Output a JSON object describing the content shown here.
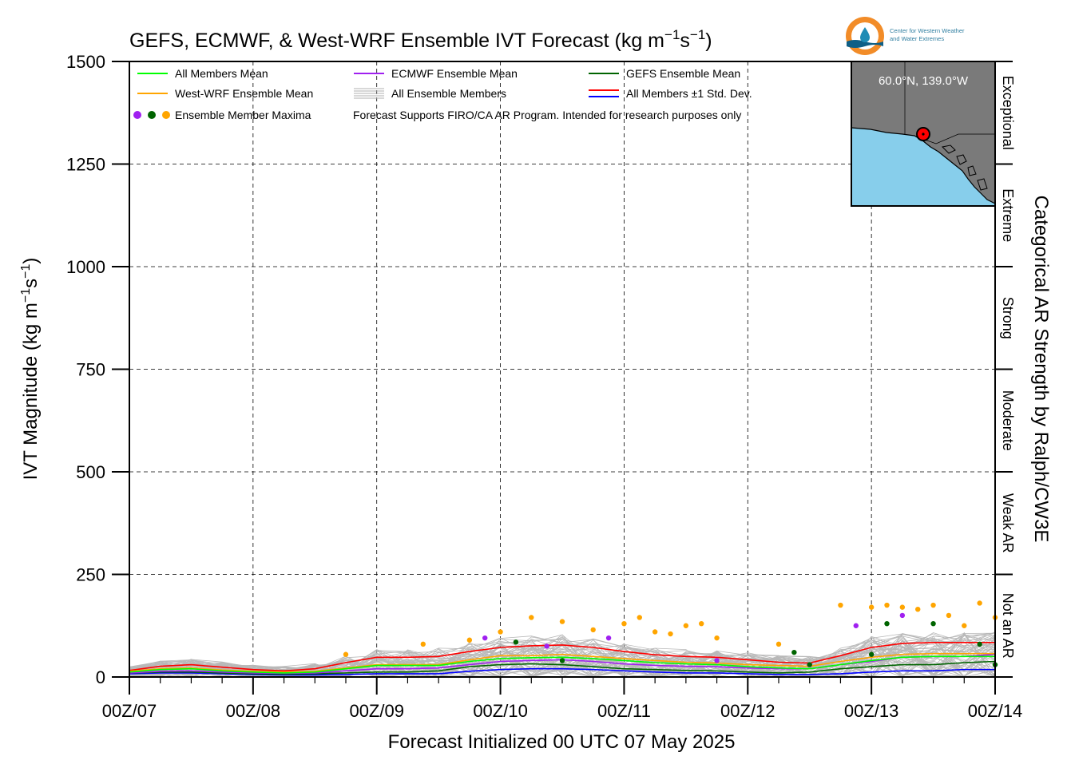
{
  "title_main": "GEFS, ECMWF, & West-WRF Ensemble IVT Forecast (kg m",
  "title_unit_exp1": "−1",
  "title_unit_mid": "s",
  "title_unit_exp2": "−1",
  "title_unit_end": ")",
  "logo": {
    "line1": "Center for Western Weather",
    "line2": "and Water Extremes",
    "colors": [
      "#f28c28",
      "#1f8cb5",
      "#0f5f86"
    ]
  },
  "inset_map": {
    "location_label": "60.0°N, 139.0°W",
    "land_color": "#7a7a7a",
    "ocean_color": "#87ceeb",
    "marker_color": "#ff0000"
  },
  "legend": {
    "all_mean": "All Members Mean",
    "ecmwf_mean": "ECMWF Ensemble Mean",
    "gefs_mean": "GEFS Ensemble Mean",
    "wwrf_mean": "West-WRF Ensemble Mean",
    "all_members": "All Ensemble Members",
    "std_dev": "All Members ±1 Std. Dev.",
    "maxima": "Ensemble Member Maxima",
    "note": "Forecast Supports FIRO/CA AR Program. Intended for research purposes only"
  },
  "chart_data": {
    "type": "line",
    "xlabel": "Forecast Initialized 00 UTC 07 May 2025",
    "ylabel": "IVT Magnitude (kg m",
    "ylabel_exp1": "−1",
    "ylabel_mid": "s",
    "ylabel_exp2": "−1",
    "ylabel_end": ")",
    "ylim": [
      0,
      1500
    ],
    "xlim": [
      0,
      168
    ],
    "yticks": [
      0,
      250,
      500,
      750,
      1000,
      1250,
      1500
    ],
    "xtick_labels": [
      "00Z/07",
      "00Z/08",
      "00Z/09",
      "00Z/10",
      "00Z/11",
      "00Z/12",
      "00Z/13",
      "00Z/14"
    ],
    "x_units": "forecast hour",
    "grid": true,
    "right_axis_label": "Categorical AR Strength by Ralph/CW3E",
    "categories": [
      {
        "label": "Not an AR",
        "range": [
          0,
          250
        ]
      },
      {
        "label": "Weak AR",
        "range": [
          250,
          500
        ]
      },
      {
        "label": "Moderate",
        "range": [
          500,
          750
        ]
      },
      {
        "label": "Strong",
        "range": [
          750,
          1000
        ]
      },
      {
        "label": "Extreme",
        "range": [
          1000,
          1250
        ]
      },
      {
        "label": "Exceptional",
        "range": [
          1250,
          1500
        ]
      }
    ],
    "x": [
      0,
      6,
      12,
      18,
      24,
      30,
      36,
      42,
      48,
      54,
      60,
      66,
      72,
      78,
      84,
      90,
      96,
      102,
      108,
      114,
      120,
      126,
      132,
      138,
      144,
      150,
      156,
      162,
      168
    ],
    "series": [
      {
        "name": "All Members Mean",
        "color": "#00ff00",
        "values": [
          12,
          18,
          20,
          15,
          12,
          10,
          12,
          20,
          28,
          28,
          28,
          38,
          45,
          47,
          48,
          45,
          40,
          35,
          32,
          30,
          25,
          22,
          20,
          30,
          40,
          48,
          50,
          50,
          50
        ]
      },
      {
        "name": "West-WRF Ensemble Mean",
        "color": "#ffa500",
        "values": [
          14,
          20,
          22,
          17,
          14,
          12,
          14,
          22,
          30,
          30,
          30,
          42,
          52,
          52,
          55,
          50,
          45,
          40,
          36,
          34,
          30,
          28,
          26,
          38,
          48,
          55,
          57,
          57,
          57
        ]
      },
      {
        "name": "ECMWF Ensemble Mean",
        "color": "#a020f0",
        "values": [
          10,
          14,
          15,
          12,
          10,
          9,
          10,
          15,
          20,
          20,
          22,
          30,
          38,
          40,
          42,
          38,
          32,
          28,
          26,
          25,
          22,
          20,
          20,
          30,
          38,
          48,
          50,
          50,
          55
        ]
      },
      {
        "name": "GEFS Ensemble Mean",
        "color": "#006400",
        "values": [
          10,
          12,
          12,
          10,
          8,
          7,
          8,
          10,
          12,
          12,
          15,
          25,
          30,
          32,
          30,
          25,
          20,
          18,
          16,
          15,
          12,
          10,
          12,
          20,
          25,
          30,
          30,
          35,
          38
        ]
      },
      {
        "name": "All Members +1 Std. Dev.",
        "color": "#ff0000",
        "values": [
          16,
          26,
          30,
          24,
          18,
          15,
          20,
          35,
          48,
          48,
          50,
          62,
          72,
          76,
          78,
          72,
          62,
          54,
          50,
          48,
          42,
          36,
          34,
          52,
          72,
          82,
          84,
          84,
          84
        ]
      },
      {
        "name": "All Members -1 Std. Dev.",
        "color": "#0000ff",
        "values": [
          8,
          10,
          10,
          8,
          6,
          5,
          5,
          6,
          8,
          8,
          8,
          14,
          18,
          20,
          20,
          18,
          15,
          12,
          10,
          10,
          8,
          6,
          6,
          8,
          12,
          15,
          15,
          18,
          18
        ]
      }
    ],
    "members_spread": {
      "min": 0,
      "max": 180
    },
    "maxima_points": [
      {
        "x": 42,
        "y": 55,
        "color": "#ffa500"
      },
      {
        "x": 57,
        "y": 80,
        "color": "#ffa500"
      },
      {
        "x": 66,
        "y": 90,
        "color": "#ffa500"
      },
      {
        "x": 69,
        "y": 95,
        "color": "#a020f0"
      },
      {
        "x": 72,
        "y": 110,
        "color": "#ffa500"
      },
      {
        "x": 75,
        "y": 85,
        "color": "#006400"
      },
      {
        "x": 78,
        "y": 145,
        "color": "#ffa500"
      },
      {
        "x": 81,
        "y": 75,
        "color": "#a020f0"
      },
      {
        "x": 84,
        "y": 135,
        "color": "#ffa500"
      },
      {
        "x": 84,
        "y": 40,
        "color": "#006400"
      },
      {
        "x": 90,
        "y": 115,
        "color": "#ffa500"
      },
      {
        "x": 93,
        "y": 95,
        "color": "#a020f0"
      },
      {
        "x": 96,
        "y": 130,
        "color": "#ffa500"
      },
      {
        "x": 99,
        "y": 145,
        "color": "#ffa500"
      },
      {
        "x": 102,
        "y": 110,
        "color": "#ffa500"
      },
      {
        "x": 105,
        "y": 105,
        "color": "#ffa500"
      },
      {
        "x": 108,
        "y": 125,
        "color": "#ffa500"
      },
      {
        "x": 111,
        "y": 130,
        "color": "#ffa500"
      },
      {
        "x": 114,
        "y": 95,
        "color": "#ffa500"
      },
      {
        "x": 114,
        "y": 40,
        "color": "#a020f0"
      },
      {
        "x": 126,
        "y": 80,
        "color": "#ffa500"
      },
      {
        "x": 129,
        "y": 60,
        "color": "#006400"
      },
      {
        "x": 132,
        "y": 30,
        "color": "#006400"
      },
      {
        "x": 138,
        "y": 175,
        "color": "#ffa500"
      },
      {
        "x": 141,
        "y": 125,
        "color": "#a020f0"
      },
      {
        "x": 144,
        "y": 170,
        "color": "#ffa500"
      },
      {
        "x": 144,
        "y": 55,
        "color": "#006400"
      },
      {
        "x": 147,
        "y": 175,
        "color": "#ffa500"
      },
      {
        "x": 147,
        "y": 130,
        "color": "#006400"
      },
      {
        "x": 150,
        "y": 170,
        "color": "#ffa500"
      },
      {
        "x": 150,
        "y": 150,
        "color": "#a020f0"
      },
      {
        "x": 153,
        "y": 165,
        "color": "#ffa500"
      },
      {
        "x": 156,
        "y": 175,
        "color": "#ffa500"
      },
      {
        "x": 156,
        "y": 130,
        "color": "#006400"
      },
      {
        "x": 159,
        "y": 150,
        "color": "#ffa500"
      },
      {
        "x": 162,
        "y": 125,
        "color": "#ffa500"
      },
      {
        "x": 165,
        "y": 180,
        "color": "#ffa500"
      },
      {
        "x": 165,
        "y": 80,
        "color": "#006400"
      },
      {
        "x": 168,
        "y": 145,
        "color": "#ffa500"
      },
      {
        "x": 168,
        "y": 30,
        "color": "#006400"
      }
    ]
  }
}
